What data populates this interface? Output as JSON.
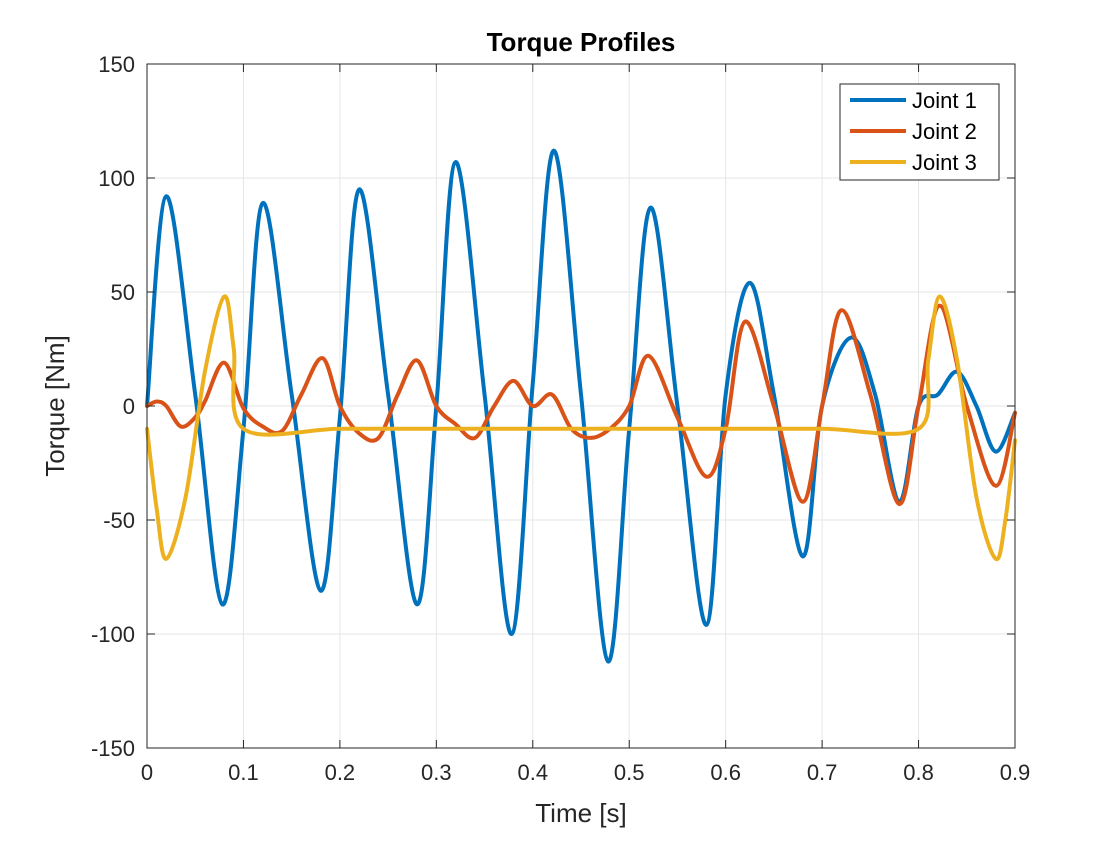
{
  "chart_data": {
    "type": "line",
    "title": "Torque Profiles",
    "xlabel": "Time [s]",
    "ylabel": "Torque [Nm]",
    "xlim": [
      0,
      0.9
    ],
    "ylim": [
      -150,
      150
    ],
    "xticks": [
      0,
      0.1,
      0.2,
      0.3,
      0.4,
      0.5,
      0.6,
      0.7,
      0.8,
      0.9
    ],
    "xtick_labels": [
      "0",
      "0.1",
      "0.2",
      "0.3",
      "0.4",
      "0.5",
      "0.6",
      "0.7",
      "0.8",
      "0.9"
    ],
    "yticks": [
      -150,
      -100,
      -50,
      0,
      50,
      100,
      150
    ],
    "ytick_labels": [
      "-150",
      "-100",
      "-50",
      "0",
      "50",
      "100",
      "150"
    ],
    "grid": true,
    "legend_position": "top-right",
    "series": [
      {
        "name": "Joint 1",
        "color": "#0072BD",
        "points": [
          [
            0.0,
            0
          ],
          [
            0.02,
            92
          ],
          [
            0.05,
            5
          ],
          [
            0.078,
            -87
          ],
          [
            0.1,
            -10
          ],
          [
            0.12,
            89
          ],
          [
            0.15,
            5
          ],
          [
            0.18,
            -81
          ],
          [
            0.2,
            -5
          ],
          [
            0.22,
            95
          ],
          [
            0.25,
            5
          ],
          [
            0.28,
            -87
          ],
          [
            0.3,
            0
          ],
          [
            0.32,
            107
          ],
          [
            0.35,
            5
          ],
          [
            0.378,
            -100
          ],
          [
            0.4,
            10
          ],
          [
            0.422,
            112
          ],
          [
            0.45,
            5
          ],
          [
            0.478,
            -112
          ],
          [
            0.5,
            -10
          ],
          [
            0.522,
            87
          ],
          [
            0.55,
            0
          ],
          [
            0.58,
            -96
          ],
          [
            0.6,
            5
          ],
          [
            0.625,
            54
          ],
          [
            0.65,
            5
          ],
          [
            0.68,
            -66
          ],
          [
            0.7,
            0
          ],
          [
            0.73,
            30
          ],
          [
            0.755,
            5
          ],
          [
            0.78,
            -42
          ],
          [
            0.8,
            0
          ],
          [
            0.82,
            5
          ],
          [
            0.84,
            15
          ],
          [
            0.86,
            0
          ],
          [
            0.88,
            -20
          ],
          [
            0.9,
            -3
          ]
        ]
      },
      {
        "name": "Joint 2",
        "color": "#D95319",
        "points": [
          [
            0.0,
            0
          ],
          [
            0.01,
            2
          ],
          [
            0.02,
            0
          ],
          [
            0.035,
            -9
          ],
          [
            0.05,
            -5
          ],
          [
            0.06,
            2
          ],
          [
            0.08,
            19
          ],
          [
            0.1,
            -1
          ],
          [
            0.12,
            -9
          ],
          [
            0.14,
            -11
          ],
          [
            0.16,
            5
          ],
          [
            0.182,
            21
          ],
          [
            0.2,
            0
          ],
          [
            0.22,
            -12
          ],
          [
            0.24,
            -14
          ],
          [
            0.26,
            5
          ],
          [
            0.28,
            20
          ],
          [
            0.3,
            0
          ],
          [
            0.32,
            -8
          ],
          [
            0.34,
            -14
          ],
          [
            0.36,
            0
          ],
          [
            0.38,
            11
          ],
          [
            0.4,
            0
          ],
          [
            0.42,
            5
          ],
          [
            0.44,
            -10
          ],
          [
            0.46,
            -14
          ],
          [
            0.48,
            -10
          ],
          [
            0.5,
            0
          ],
          [
            0.52,
            22
          ],
          [
            0.55,
            -5
          ],
          [
            0.58,
            -31
          ],
          [
            0.6,
            -10
          ],
          [
            0.62,
            37
          ],
          [
            0.65,
            0
          ],
          [
            0.68,
            -42
          ],
          [
            0.7,
            0
          ],
          [
            0.72,
            42
          ],
          [
            0.75,
            5
          ],
          [
            0.78,
            -43
          ],
          [
            0.8,
            0
          ],
          [
            0.822,
            44
          ],
          [
            0.85,
            0
          ],
          [
            0.88,
            -35
          ],
          [
            0.9,
            -3
          ]
        ]
      },
      {
        "name": "Joint 3",
        "color": "#EDB120",
        "points": [
          [
            0.0,
            -10
          ],
          [
            0.01,
            -45
          ],
          [
            0.02,
            -67
          ],
          [
            0.04,
            -40
          ],
          [
            0.06,
            15
          ],
          [
            0.08,
            48
          ],
          [
            0.09,
            25
          ],
          [
            0.1,
            -10
          ],
          [
            0.2,
            -10
          ],
          [
            0.3,
            -10
          ],
          [
            0.4,
            -10
          ],
          [
            0.5,
            -10
          ],
          [
            0.6,
            -10
          ],
          [
            0.7,
            -10
          ],
          [
            0.8,
            -10
          ],
          [
            0.81,
            20
          ],
          [
            0.822,
            48
          ],
          [
            0.84,
            20
          ],
          [
            0.86,
            -40
          ],
          [
            0.88,
            -67
          ],
          [
            0.89,
            -50
          ],
          [
            0.9,
            -15
          ]
        ]
      }
    ]
  }
}
